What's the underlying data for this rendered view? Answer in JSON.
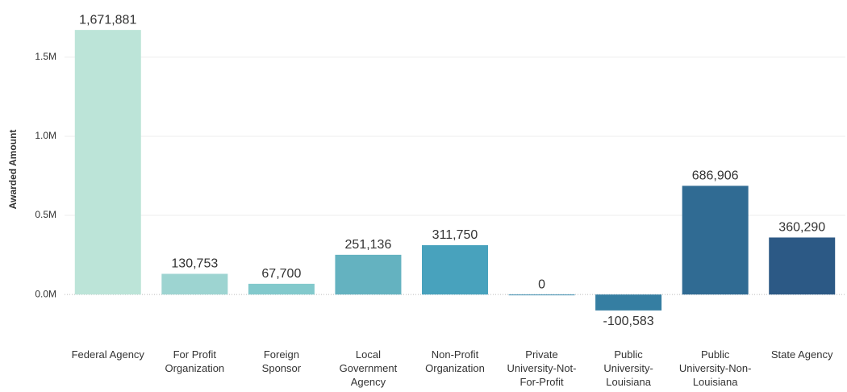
{
  "chart_data": {
    "type": "bar",
    "y_label": "Awarded Amount",
    "categories": [
      "Federal Agency",
      "For Profit Organization",
      "Foreign Sponsor",
      "Local Government Agency",
      "Non-Profit Organization",
      "Private University-Not-For-Profit",
      "Public University-Louisiana",
      "Public University-Non-Louisiana",
      "State Agency"
    ],
    "values": [
      1671881,
      130753,
      67700,
      251136,
      311750,
      0,
      -100583,
      686906,
      360290
    ],
    "value_labels": [
      "1,671,881",
      "130,753",
      "67,700",
      "251,136",
      "311,750",
      "0",
      "-100,583",
      "686,906",
      "360,290"
    ],
    "colors": [
      "#bce4d8",
      "#9dd4d1",
      "#82c9cc",
      "#64b2c0",
      "#48a2bd",
      "#3c8fb0",
      "#357ea2",
      "#306b93",
      "#2c5985"
    ],
    "ylim": [
      -300000,
      1800000
    ],
    "yticks": [
      {
        "value": 0,
        "label": "0.0M"
      },
      {
        "value": 500000,
        "label": "0.5M"
      },
      {
        "value": 1000000,
        "label": "1.0M"
      },
      {
        "value": 1500000,
        "label": "1.5M"
      }
    ],
    "grid": true
  }
}
